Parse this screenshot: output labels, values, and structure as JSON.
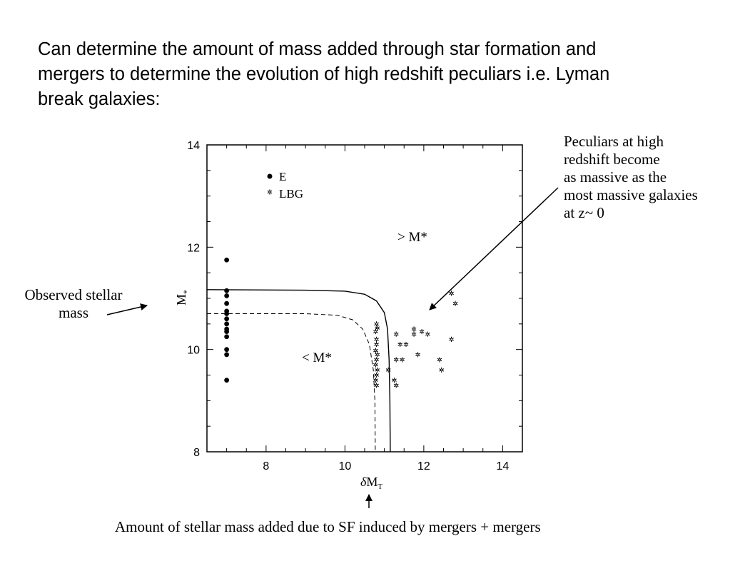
{
  "heading": {
    "lines": [
      "Can determine the amount of mass added through star formation and",
      "mergers to determine the evolution of high redshift peculiars i.e. Lyman",
      "break galaxies:"
    ]
  },
  "annotations": {
    "peculiars": [
      "Peculiars at high",
      "redshift become",
      "as massive as the",
      "most massive galaxies",
      "at z~ 0"
    ],
    "observed": [
      "Observed stellar",
      "mass"
    ],
    "bottom": "Amount of stellar mass added due to SF induced by mergers + mergers"
  },
  "chart_data": {
    "type": "scatter",
    "xlabel": "δM_T",
    "ylabel": "M_*",
    "xlim": [
      6.5,
      14.5
    ],
    "ylim": [
      8,
      14
    ],
    "xticks": [
      8,
      10,
      12,
      14
    ],
    "yticks": [
      8,
      10,
      12,
      14
    ],
    "grid": false,
    "legend_position": "top-left",
    "plot_labels": [
      "> M*",
      "< M*"
    ],
    "series": [
      {
        "name": "E",
        "marker": "filled-circle",
        "points": [
          [
            7.0,
            11.75
          ],
          [
            7.0,
            11.15
          ],
          [
            7.0,
            11.05
          ],
          [
            7.0,
            10.9
          ],
          [
            7.0,
            10.75
          ],
          [
            7.0,
            10.7
          ],
          [
            7.0,
            10.6
          ],
          [
            7.0,
            10.5
          ],
          [
            7.0,
            10.4
          ],
          [
            7.0,
            10.35
          ],
          [
            7.0,
            10.25
          ],
          [
            7.0,
            10.0
          ],
          [
            7.0,
            9.9
          ],
          [
            7.0,
            9.4
          ]
        ]
      },
      {
        "name": "LBG",
        "marker": "open-star",
        "points": [
          [
            10.8,
            10.5
          ],
          [
            10.82,
            10.42
          ],
          [
            10.78,
            10.35
          ],
          [
            10.8,
            10.2
          ],
          [
            10.8,
            10.1
          ],
          [
            10.78,
            9.98
          ],
          [
            10.82,
            9.9
          ],
          [
            10.8,
            9.8
          ],
          [
            10.78,
            9.7
          ],
          [
            10.82,
            9.6
          ],
          [
            10.8,
            9.5
          ],
          [
            10.78,
            9.4
          ],
          [
            10.8,
            9.3
          ],
          [
            11.3,
            10.3
          ],
          [
            11.4,
            10.1
          ],
          [
            11.55,
            10.1
          ],
          [
            11.3,
            9.8
          ],
          [
            11.45,
            9.8
          ],
          [
            11.1,
            9.6
          ],
          [
            11.25,
            9.4
          ],
          [
            11.3,
            9.3
          ],
          [
            11.75,
            10.4
          ],
          [
            11.75,
            10.3
          ],
          [
            11.95,
            10.35
          ],
          [
            12.1,
            10.3
          ],
          [
            11.85,
            9.9
          ],
          [
            12.4,
            9.8
          ],
          [
            12.45,
            9.6
          ],
          [
            12.7,
            11.1
          ],
          [
            12.8,
            10.9
          ],
          [
            12.7,
            10.2
          ]
        ]
      }
    ],
    "curves": [
      {
        "name": "solid boundary",
        "style": "solid",
        "points": [
          [
            6.5,
            11.17
          ],
          [
            9.0,
            11.16
          ],
          [
            10.0,
            11.14
          ],
          [
            10.5,
            11.08
          ],
          [
            10.8,
            10.95
          ],
          [
            11.0,
            10.72
          ],
          [
            11.08,
            10.4
          ],
          [
            11.12,
            9.8
          ],
          [
            11.14,
            9.0
          ],
          [
            11.15,
            8.0
          ]
        ]
      },
      {
        "name": "dashed boundary",
        "style": "dashed",
        "points": [
          [
            6.5,
            10.7
          ],
          [
            9.0,
            10.7
          ],
          [
            9.8,
            10.67
          ],
          [
            10.2,
            10.58
          ],
          [
            10.45,
            10.4
          ],
          [
            10.62,
            10.1
          ],
          [
            10.72,
            9.6
          ],
          [
            10.76,
            9.0
          ],
          [
            10.77,
            8.0
          ]
        ]
      }
    ]
  }
}
